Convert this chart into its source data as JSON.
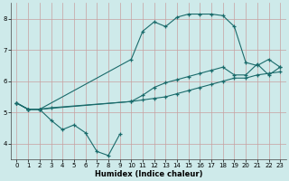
{
  "xlabel": "Humidex (Indice chaleur)",
  "bg_color": "#ceeaea",
  "grid_color": "#c8a0a0",
  "line_color": "#1a6b6b",
  "xlim": [
    -0.5,
    23.5
  ],
  "ylim": [
    3.5,
    8.5
  ],
  "yticks": [
    4,
    5,
    6,
    7,
    8
  ],
  "xticks": [
    0,
    1,
    2,
    3,
    4,
    5,
    6,
    7,
    8,
    9,
    10,
    11,
    12,
    13,
    14,
    15,
    16,
    17,
    18,
    19,
    20,
    21,
    22,
    23
  ],
  "line1_x": [
    0,
    1,
    2,
    3,
    4,
    5,
    6,
    7,
    8,
    9
  ],
  "line1_y": [
    5.3,
    5.1,
    5.1,
    4.75,
    4.45,
    4.6,
    4.35,
    3.75,
    3.62,
    4.3
  ],
  "line2_x": [
    0,
    1,
    2,
    3,
    10,
    11,
    12,
    13,
    14,
    15,
    16,
    17,
    18,
    19,
    20,
    21,
    22,
    23
  ],
  "line2_y": [
    5.3,
    5.1,
    5.1,
    5.15,
    5.35,
    5.55,
    5.8,
    5.95,
    6.05,
    6.15,
    6.25,
    6.35,
    6.45,
    6.2,
    6.2,
    6.55,
    6.2,
    6.45
  ],
  "line3_x": [
    0,
    1,
    2,
    10,
    11,
    12,
    13,
    14,
    15,
    16,
    17,
    18,
    19,
    20,
    21,
    22,
    23
  ],
  "line3_y": [
    5.3,
    5.1,
    5.1,
    6.7,
    7.6,
    7.9,
    7.75,
    8.05,
    8.15,
    8.15,
    8.15,
    8.1,
    7.75,
    6.6,
    6.5,
    6.7,
    6.45
  ],
  "line4_x": [
    0,
    1,
    2,
    10,
    11,
    12,
    13,
    14,
    15,
    16,
    17,
    18,
    19,
    20,
    21,
    22,
    23
  ],
  "line4_y": [
    5.3,
    5.1,
    5.1,
    5.35,
    5.4,
    5.45,
    5.5,
    5.6,
    5.7,
    5.8,
    5.9,
    6.0,
    6.1,
    6.1,
    6.2,
    6.25,
    6.3
  ]
}
